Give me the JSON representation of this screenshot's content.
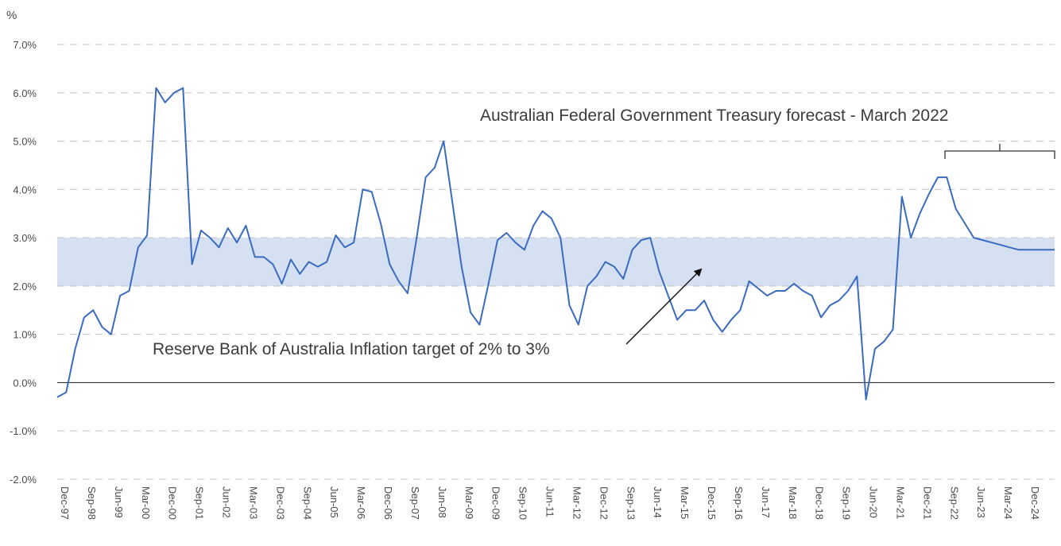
{
  "chart_data": {
    "type": "line",
    "y_unit_label": "%",
    "ylim": [
      -2.0,
      7.0
    ],
    "y_ticks": [
      "-2.0%",
      "-1.0%",
      "0.0%",
      "1.0%",
      "2.0%",
      "3.0%",
      "4.0%",
      "5.0%",
      "6.0%",
      "7.0%"
    ],
    "x_tick_labels": [
      "Dec-97",
      "Sep-98",
      "Jun-99",
      "Mar-00",
      "Dec-00",
      "Sep-01",
      "Jun-02",
      "Mar-03",
      "Dec-03",
      "Sep-04",
      "Jun-05",
      "Mar-06",
      "Dec-06",
      "Sep-07",
      "Jun-08",
      "Mar-09",
      "Dec-09",
      "Sep-10",
      "Jun-11",
      "Mar-12",
      "Dec-12",
      "Sep-13",
      "Jun-14",
      "Mar-15",
      "Dec-15",
      "Sep-16",
      "Jun-17",
      "Mar-18",
      "Dec-18",
      "Sep-19",
      "Jun-20",
      "Mar-21",
      "Dec-21",
      "Sep-22",
      "Jun-23",
      "Mar-24",
      "Dec-24"
    ],
    "grid": true,
    "target_band": {
      "low": 2.0,
      "high": 3.0,
      "color": "#d6e0f3"
    },
    "series": [
      {
        "color": "#3a6bbf",
        "values": [
          -0.3,
          -0.2,
          0.7,
          1.35,
          1.5,
          1.15,
          1.0,
          1.8,
          1.9,
          2.8,
          3.05,
          6.1,
          5.8,
          6.0,
          6.1,
          2.45,
          3.15,
          3.0,
          2.8,
          3.2,
          2.9,
          3.25,
          2.6,
          2.6,
          2.45,
          2.05,
          2.55,
          2.25,
          2.5,
          2.4,
          2.5,
          3.05,
          2.8,
          2.9,
          4.0,
          3.95,
          3.3,
          2.45,
          2.1,
          1.85,
          3.0,
          4.25,
          4.45,
          5.0,
          3.7,
          2.4,
          1.45,
          1.2,
          2.05,
          2.95,
          3.1,
          2.9,
          2.75,
          3.25,
          3.55,
          3.4,
          3.0,
          1.6,
          1.2,
          2.0,
          2.2,
          2.5,
          2.4,
          2.15,
          2.75,
          2.95,
          3.0,
          2.3,
          1.8,
          1.3,
          1.5,
          1.5,
          1.7,
          1.3,
          1.05,
          1.3,
          1.5,
          2.1,
          1.95,
          1.8,
          1.9,
          1.9,
          2.05,
          1.9,
          1.8,
          1.35,
          1.6,
          1.7,
          1.9,
          2.2,
          -0.35,
          0.7,
          0.85,
          1.1,
          3.85,
          3.0,
          3.5,
          3.9,
          4.25,
          4.25,
          3.6,
          3.3,
          3.0,
          2.95,
          2.9,
          2.85,
          2.8,
          2.75,
          2.75,
          2.75,
          2.75,
          2.75
        ]
      }
    ],
    "annotations": {
      "rba_target": "Reserve Bank of Australia Inflation target of 2% to 3%",
      "treasury_forecast": "Australian Federal Government Treasury forecast - March 2022"
    }
  }
}
